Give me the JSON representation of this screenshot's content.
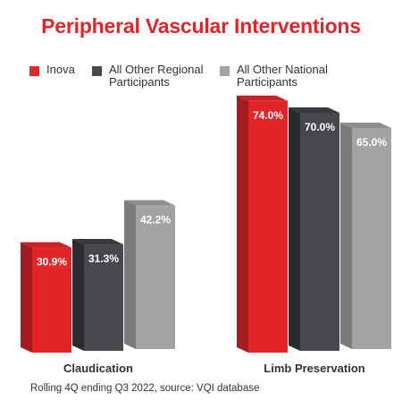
{
  "chart_data": {
    "type": "bar",
    "title": "Peripheral Vascular Interventions",
    "categories": [
      "Claudication",
      "Limb Preservation"
    ],
    "series": [
      {
        "name": "Inova",
        "values": [
          30.9,
          74.0
        ],
        "labels": [
          "30.9%",
          "74.0%"
        ],
        "color": "#e42527",
        "side_color": "#a31d20",
        "top_color": "#c82226"
      },
      {
        "name": "All Other Regional Participants",
        "values": [
          31.3,
          70.0
        ],
        "labels": [
          "31.3%",
          "70.0%"
        ],
        "color": "#47484c",
        "side_color": "#2b2c2f",
        "top_color": "#38393c"
      },
      {
        "name": "All Other National Participants",
        "values": [
          42.2,
          65.0
        ],
        "labels": [
          "42.2%",
          "65.0%"
        ],
        "color": "#a3a3a5",
        "side_color": "#7b7b7d",
        "top_color": "#8e8e90"
      }
    ],
    "legend_position": "top",
    "grid": false,
    "ylim": [
      0,
      100
    ]
  },
  "legend": [
    {
      "label": "Inova",
      "color": "#e42527"
    },
    {
      "label": "All Other Regional\nParticipants",
      "color": "#47484c"
    },
    {
      "label": "All Other National\nParticipants",
      "color": "#a3a3a5"
    }
  ],
  "footnote": "Rolling 4Q ending Q3 2022, source: VQI database"
}
